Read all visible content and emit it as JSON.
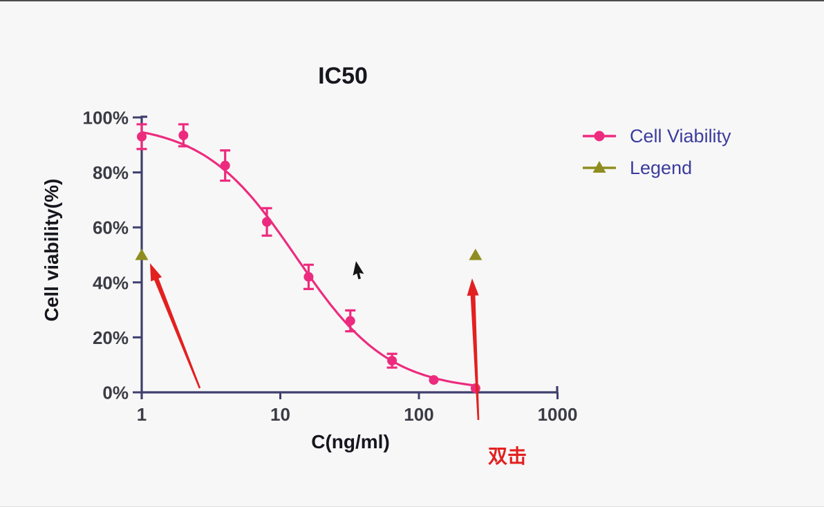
{
  "chart_data": {
    "type": "scatter",
    "title": "IC50",
    "xlabel": "C(ng/ml)",
    "ylabel": "Cell viability(%)",
    "x_scale": "log",
    "xlim": [
      1,
      1000
    ],
    "ylim_percent": [
      0,
      100
    ],
    "grid": false,
    "legend_position": "right-top",
    "x_ticks": [
      {
        "value": 1,
        "label": "1"
      },
      {
        "value": 10,
        "label": "10"
      },
      {
        "value": 100,
        "label": "100"
      },
      {
        "value": 1000,
        "label": "1000"
      }
    ],
    "y_ticks": [
      {
        "value": 0,
        "label": "0%"
      },
      {
        "value": 20,
        "label": "20%"
      },
      {
        "value": 40,
        "label": "40%"
      },
      {
        "value": 60,
        "label": "60%"
      },
      {
        "value": 80,
        "label": "80%"
      },
      {
        "value": 100,
        "label": "100%"
      }
    ],
    "series": [
      {
        "name": "Cell Viability",
        "marker": "circle",
        "color": "#ED2B7E",
        "points": [
          {
            "x": 1,
            "y": 93,
            "sem": 4.5
          },
          {
            "x": 2,
            "y": 93.5,
            "sem": 4
          },
          {
            "x": 4,
            "y": 82.5,
            "sem": 5.5
          },
          {
            "x": 8,
            "y": 62,
            "sem": 5
          },
          {
            "x": 16,
            "y": 42,
            "sem": 4.4
          },
          {
            "x": 32,
            "y": 26,
            "sem": 3.8
          },
          {
            "x": 64,
            "y": 11.5,
            "sem": 2.5
          },
          {
            "x": 128,
            "y": 4.5,
            "sem": 0
          },
          {
            "x": 256,
            "y": 1.5,
            "sem": 0
          }
        ]
      },
      {
        "name": "Legend",
        "marker": "triangle",
        "color": "#8F8D1F",
        "points": [
          {
            "x": 1,
            "y": 50
          },
          {
            "x": 256,
            "y": 50
          }
        ]
      }
    ],
    "curve_fit": {
      "model": "four-parameter-logistic",
      "top": 98,
      "bottom": 0.5,
      "ic50_ng_ml": 13,
      "hill_slope": 1.3,
      "x_start": 1,
      "x_end": 256
    },
    "axis_color": "#3F3F6E",
    "tick_label_color": "#3B3B45",
    "title_color": "#16161E",
    "legend_text_color": "#3C3C9E"
  },
  "annotations": {
    "double_click_label": "双击",
    "color": "#E32020",
    "arrows": [
      {
        "points_at": "legend-triangle-left"
      },
      {
        "points_at": "legend-triangle-right"
      }
    ],
    "mouse_cursor": {
      "style": "arrow",
      "color": "#151515"
    }
  }
}
